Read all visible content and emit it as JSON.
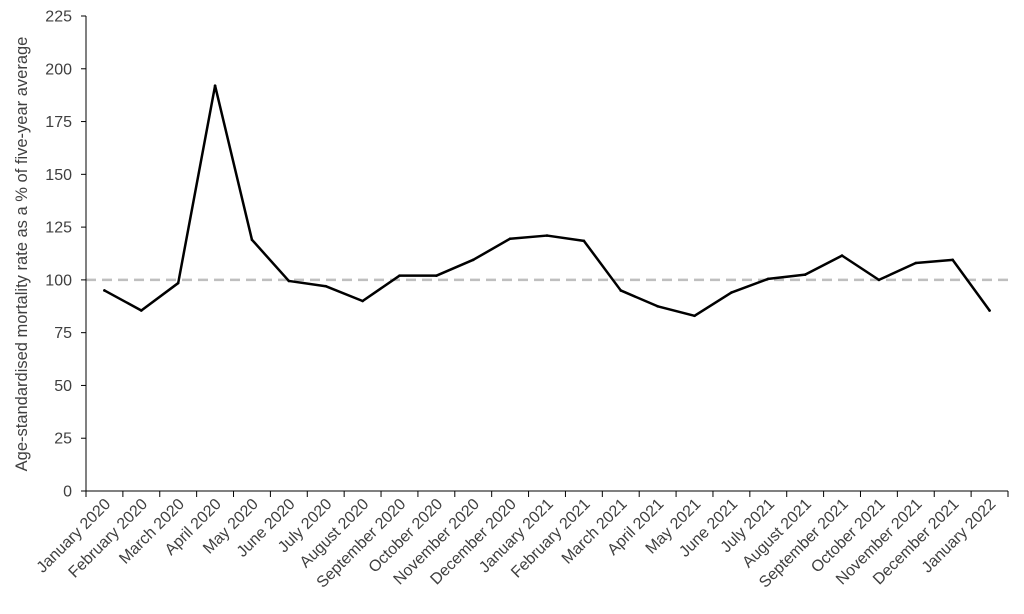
{
  "chart_data": {
    "type": "line",
    "title": "",
    "xlabel": "",
    "ylabel": "Age-standardised mortality rate as a % of five-year average",
    "ylim": [
      0,
      225
    ],
    "yticks": [
      0,
      25,
      50,
      75,
      100,
      125,
      150,
      175,
      200,
      225
    ],
    "grid": false,
    "legend": "none",
    "categories": [
      "January 2020",
      "February 2020",
      "March 2020",
      "April 2020",
      "May 2020",
      "June 2020",
      "July 2020",
      "August 2020",
      "September 2020",
      "October 2020",
      "November 2020",
      "December 2020",
      "January 2021",
      "February 2021",
      "March 2021",
      "April 2021",
      "May 2021",
      "June 2021",
      "July 2021",
      "August 2021",
      "September 2021",
      "October 2021",
      "November 2021",
      "December 2021",
      "January 2022"
    ],
    "series": [
      {
        "values": [
          95,
          85.5,
          98.5,
          192,
          119,
          99.5,
          97,
          90,
          102,
          102,
          109.5,
          119.5,
          121,
          118.5,
          95,
          87.5,
          83,
          94,
          100.5,
          102.5,
          111.5,
          100,
          108,
          109.5,
          85.5
        ],
        "color": "#000000",
        "style": "solid"
      }
    ],
    "reference_lines": [
      {
        "y": 100,
        "color": "#bfbfbf",
        "style": "dashed"
      }
    ],
    "colors": {
      "axis": "#000000",
      "text": "#3f3f3f"
    }
  }
}
